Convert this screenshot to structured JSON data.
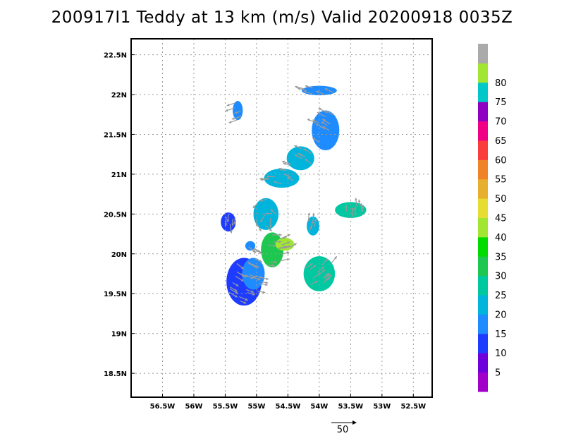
{
  "title": "200917I1 Teddy at 13 km (m/s) Valid 20200918 0035Z",
  "chart_data": {
    "type": "heatmap",
    "title": "200917I1 Teddy at 13 km (m/s) Valid 20200918 0035Z",
    "xlim": [
      -57.0,
      -52.2
    ],
    "ylim": [
      18.2,
      22.7
    ],
    "x_ticks": [
      -56.5,
      -56,
      -55.5,
      -55,
      -54.5,
      -54,
      -53.5,
      -53,
      -52.5
    ],
    "x_tick_labels": [
      "56.5W",
      "56W",
      "55.5W",
      "55W",
      "54.5W",
      "54W",
      "53.5W",
      "53W",
      "52.5W"
    ],
    "y_ticks": [
      18.5,
      19,
      19.5,
      20,
      20.5,
      21,
      21.5,
      22,
      22.5
    ],
    "y_tick_labels": [
      "18.5N",
      "19N",
      "19.5N",
      "20N",
      "20.5N",
      "21N",
      "21.5N",
      "22N",
      "22.5N"
    ],
    "grid": true,
    "colorbar": {
      "labels": [
        "5",
        "10",
        "15",
        "20",
        "25",
        "30",
        "35",
        "40",
        "45",
        "50",
        "55",
        "60",
        "65",
        "70",
        "75",
        "80"
      ],
      "colors": [
        "#a000c8",
        "#6e00dc",
        "#1e3cff",
        "#1e8cff",
        "#00b4dc",
        "#00c8a0",
        "#1ec850",
        "#00dc00",
        "#a0e632",
        "#e6dc32",
        "#e6af2d",
        "#f08228",
        "#fa3c3c",
        "#f00082",
        "#9000c0",
        "#00c8c8",
        "#a0e632",
        "#aaaaaa"
      ]
    },
    "reference_vector": {
      "value": 50,
      "label": "50"
    },
    "wind_regions": [
      {
        "x": -55.2,
        "y": 19.65,
        "rx": 0.28,
        "ry": 0.3,
        "speed": 10
      },
      {
        "x": -55.05,
        "y": 19.75,
        "rx": 0.18,
        "ry": 0.2,
        "speed": 15
      },
      {
        "x": -55.45,
        "y": 20.4,
        "rx": 0.12,
        "ry": 0.12,
        "speed": 10
      },
      {
        "x": -55.1,
        "y": 20.1,
        "rx": 0.08,
        "ry": 0.06,
        "speed": 15
      },
      {
        "x": -54.85,
        "y": 20.5,
        "rx": 0.2,
        "ry": 0.2,
        "speed": 20
      },
      {
        "x": -54.75,
        "y": 20.05,
        "rx": 0.18,
        "ry": 0.22,
        "speed": 30
      },
      {
        "x": -54.55,
        "y": 20.12,
        "rx": 0.15,
        "ry": 0.08,
        "speed": 40
      },
      {
        "x": -54.6,
        "y": 20.95,
        "rx": 0.28,
        "ry": 0.12,
        "speed": 20
      },
      {
        "x": -54.3,
        "y": 21.2,
        "rx": 0.22,
        "ry": 0.15,
        "speed": 20
      },
      {
        "x": -53.9,
        "y": 21.55,
        "rx": 0.22,
        "ry": 0.25,
        "speed": 15
      },
      {
        "x": -54.0,
        "y": 22.05,
        "rx": 0.28,
        "ry": 0.06,
        "speed": 15
      },
      {
        "x": -55.3,
        "y": 21.8,
        "rx": 0.08,
        "ry": 0.12,
        "speed": 15
      },
      {
        "x": -54.0,
        "y": 19.75,
        "rx": 0.25,
        "ry": 0.22,
        "speed": 25
      },
      {
        "x": -53.5,
        "y": 20.55,
        "rx": 0.25,
        "ry": 0.1,
        "speed": 25
      },
      {
        "x": -54.1,
        "y": 20.35,
        "rx": 0.1,
        "ry": 0.12,
        "speed": 20
      }
    ]
  }
}
